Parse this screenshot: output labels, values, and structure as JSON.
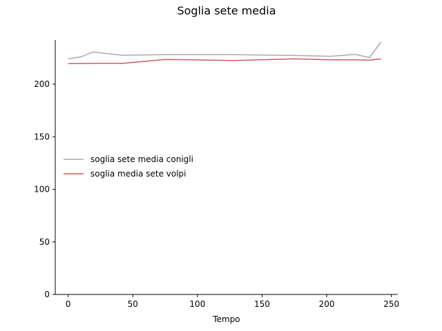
{
  "chart_data": {
    "type": "line",
    "title": "Soglia sete media",
    "xlabel": "Tempo",
    "ylabel": "",
    "xlim": [
      -10,
      255
    ],
    "ylim": [
      0,
      242
    ],
    "xticks": [
      0,
      50,
      100,
      150,
      200,
      250
    ],
    "yticks": [
      0,
      50,
      100,
      150,
      200
    ],
    "grid": false,
    "legend_position": "center-left",
    "series": [
      {
        "name": "soglia sete media conigli",
        "color": "#a9a9a9",
        "x": [
          0,
          10,
          19,
          42,
          75,
          128,
          175,
          203,
          222,
          233,
          242
        ],
        "y": [
          224,
          226,
          230.5,
          227.5,
          228,
          228,
          227.3,
          226.5,
          228.3,
          225.3,
          240
        ]
      },
      {
        "name": "soglia media sete volpi",
        "color": "#cd5c5c",
        "x": [
          0,
          10,
          19,
          42,
          75,
          128,
          175,
          203,
          222,
          233,
          242
        ],
        "y": [
          219.5,
          219.5,
          219.8,
          219.8,
          223.5,
          222.5,
          224,
          223.2,
          223.2,
          222.8,
          224
        ]
      }
    ]
  }
}
